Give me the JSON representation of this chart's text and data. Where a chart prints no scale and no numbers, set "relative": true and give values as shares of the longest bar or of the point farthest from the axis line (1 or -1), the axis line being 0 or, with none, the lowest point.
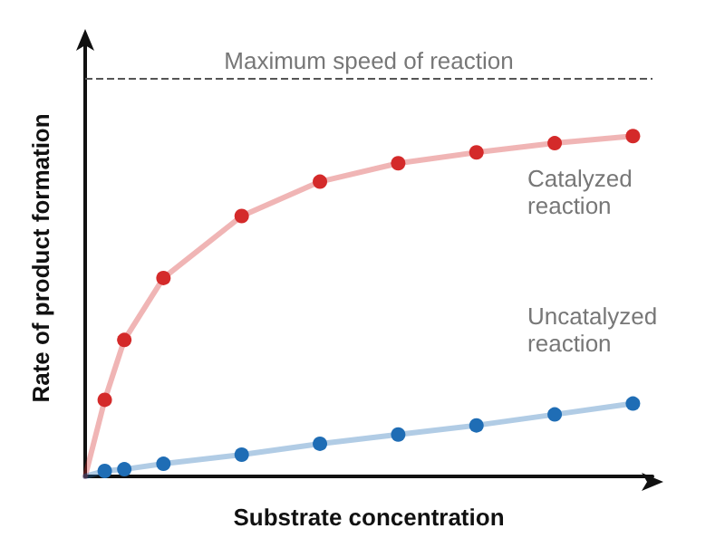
{
  "chart_data": {
    "type": "line",
    "marker": "circle",
    "relative": true,
    "xlabel": "Substrate concentration",
    "ylabel": "Rate of product formation",
    "grid": false,
    "categories": [
      null,
      null,
      null,
      null,
      null,
      null,
      null,
      null,
      null,
      null,
      null,
      null,
      null,
      null,
      null,
      null,
      null,
      null,
      null,
      null,
      null,
      null,
      null,
      null,
      null,
      null,
      null,
      null,
      null,
      null
    ],
    "series": [
      {
        "color": "#d42a2a",
        "values": [
          0,
          0.225,
          0.401,
          null,
          0.583,
          null,
          null,
          null,
          0.765,
          null,
          null,
          null,
          0.866,
          null,
          null,
          null,
          0.92,
          null,
          null,
          null,
          0.952,
          null,
          null,
          null,
          0.979,
          null,
          null,
          null,
          1.0,
          null
        ]
      },
      {
        "color": "#1f6db5",
        "values": [
          0,
          0.016,
          0.021,
          null,
          0.037,
          null,
          null,
          null,
          0.064,
          null,
          null,
          null,
          0.096,
          null,
          null,
          null,
          0.123,
          null,
          null,
          null,
          0.15,
          null,
          null,
          null,
          0.182,
          null,
          null,
          null,
          0.214,
          null
        ]
      }
    ],
    "ref_lines": [
      {
        "axis": "y",
        "value": 1.166,
        "label": "Maximum speed of reaction",
        "color": "#555555",
        "line_style": "dashed"
      }
    ],
    "annotations": [
      "Catalyzed reaction",
      "Uncatalyzed reaction"
    ]
  }
}
